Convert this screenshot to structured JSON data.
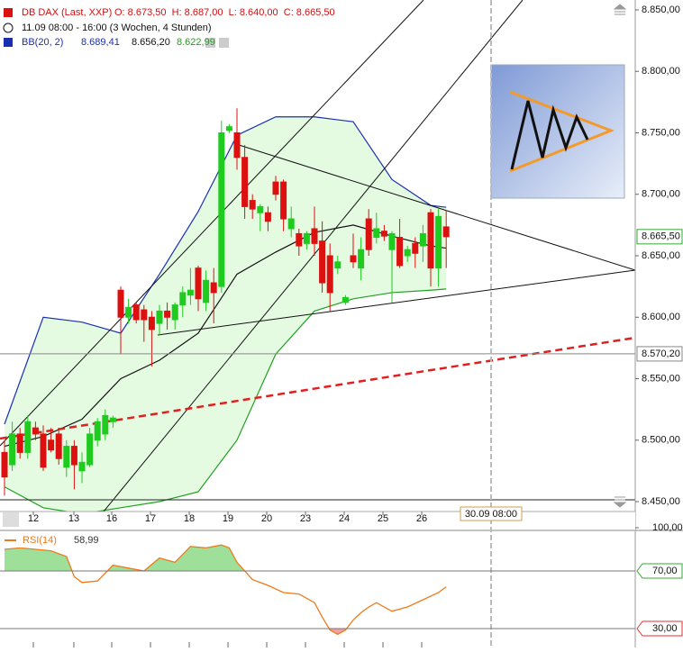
{
  "chart_data": [
    {
      "type": "candlestick",
      "title": "DB DAX (Last, XXP)",
      "ohlc_label": "O: 8.673,50  H: 8.687,00  L: 8.640,00  C: 8.665,50",
      "subtitle": "11.09 08:00 - 16:00 (3 Wochen, 4 Stunden)",
      "up_color": "#1ecb1e",
      "down_color": "#dd1010",
      "x": [
        0,
        1,
        2,
        3,
        4,
        5,
        6,
        7,
        8,
        9,
        10,
        11,
        12,
        13,
        14,
        15,
        16,
        17,
        18,
        19,
        20,
        21,
        22,
        23,
        24,
        25,
        26,
        27,
        28,
        29,
        30,
        31,
        32,
        33,
        34,
        35,
        36,
        37,
        38,
        39,
        40,
        41,
        42,
        43,
        44,
        45,
        46,
        47,
        48,
        49,
        50,
        51,
        52,
        53,
        54,
        55,
        56,
        57
      ],
      "open": [
        8490,
        8480,
        8505,
        8490,
        8510,
        8505,
        8500,
        8505,
        8478,
        8495,
        8475,
        8480,
        8500,
        8505,
        8515,
        8622,
        8600,
        8610,
        8606,
        8600,
        8595,
        8605,
        8598,
        8610,
        8618,
        8640,
        8612,
        8628,
        8625,
        8752,
        8750,
        8730,
        8695,
        8685,
        8685,
        8710,
        8710,
        8672,
        8668,
        8660,
        8672,
        8662,
        8650,
        8640,
        8612,
        8650,
        8640,
        8680,
        8665,
        8670,
        8655,
        8665,
        8650,
        8660,
        8658,
        8685,
        8640,
        8673.5
      ],
      "high": [
        8500,
        8515,
        8510,
        8520,
        8515,
        8512,
        8510,
        8510,
        8500,
        8500,
        8490,
        8510,
        8518,
        8525,
        8520,
        8625,
        8615,
        8612,
        8610,
        8605,
        8610,
        8612,
        8612,
        8625,
        8640,
        8642,
        8638,
        8640,
        8760,
        8757,
        8770,
        8740,
        8700,
        8692,
        8690,
        8715,
        8712,
        8690,
        8672,
        8670,
        8690,
        8678,
        8660,
        8650,
        8618,
        8668,
        8665,
        8688,
        8685,
        8675,
        8670,
        8680,
        8658,
        8665,
        8675,
        8688,
        8688,
        8687
      ],
      "low": [
        8455,
        8475,
        8485,
        8485,
        8500,
        8475,
        8490,
        8480,
        8470,
        8460,
        8465,
        8478,
        8495,
        8500,
        8510,
        8570,
        8595,
        8595,
        8580,
        8560,
        8585,
        8590,
        8590,
        8600,
        8610,
        8605,
        8605,
        8595,
        8620,
        8750,
        8720,
        8680,
        8680,
        8670,
        8670,
        8695,
        8670,
        8665,
        8650,
        8655,
        8650,
        8620,
        8605,
        8635,
        8610,
        8640,
        8630,
        8650,
        8660,
        8662,
        8612,
        8640,
        8645,
        8640,
        8645,
        8625,
        8625,
        8640
      ],
      "close": [
        8470,
        8505,
        8490,
        8515,
        8505,
        8478,
        8492,
        8485,
        8495,
        8480,
        8482,
        8505,
        8515,
        8520,
        8518,
        8600,
        8608,
        8598,
        8598,
        8590,
        8605,
        8600,
        8610,
        8620,
        8622,
        8615,
        8630,
        8620,
        8750,
        8755,
        8730,
        8690,
        8688,
        8690,
        8678,
        8700,
        8680,
        8680,
        8658,
        8668,
        8660,
        8628,
        8620,
        8645,
        8616,
        8645,
        8655,
        8655,
        8672,
        8666,
        8668,
        8642,
        8655,
        8652,
        8668,
        8640,
        8682,
        8665.5
      ],
      "bands": {
        "name": "BB(20, 2)",
        "fill": "#e4fbe2",
        "x": [
          0,
          5,
          10,
          15,
          20,
          25,
          30,
          35,
          40,
          45,
          50,
          55,
          57
        ],
        "series": [
          {
            "color": "#1a2fb0",
            "values": [
              8513,
              8600,
              8596,
              8587,
              8635,
              8686,
              8748,
              8763,
              8763,
              8759,
              8712,
              8691,
              8689.41
            ],
            "value_label": "8.689,41"
          },
          {
            "color": "#111111",
            "values": [
              8495,
              8503,
              8517,
              8550,
              8565,
              8587,
              8635,
              8653,
              8669,
              8675,
              8666,
              8658,
              8656.2
            ],
            "value_label": "8.656,20"
          },
          {
            "color": "#22a022",
            "values": [
              8462,
              8445,
              8440,
              8445,
              8450,
              8458,
              8500,
              8570,
              8605,
              8615,
              8620,
              8622,
              8622.99
            ],
            "value_label": "8.622,99"
          }
        ]
      },
      "xlim": [
        -0.5814,
        81.3953
      ],
      "xticks": [
        {
          "value": 3.72,
          "label": "12"
        },
        {
          "value": 8.95,
          "label": "13"
        },
        {
          "value": 13.84,
          "label": "16"
        },
        {
          "value": 18.84,
          "label": "17"
        },
        {
          "value": 23.84,
          "label": "18"
        },
        {
          "value": 28.84,
          "label": "19"
        },
        {
          "value": 33.84,
          "label": "20"
        },
        {
          "value": 38.84,
          "label": "23"
        },
        {
          "value": 43.84,
          "label": "24"
        },
        {
          "value": 48.84,
          "label": "25"
        },
        {
          "value": 53.84,
          "label": "26"
        }
      ],
      "ylim": [
        8441.94,
        8858.06
      ],
      "yticks": [
        {
          "value": 8450,
          "label": "8.450,00"
        },
        {
          "value": 8500,
          "label": "8.500,00"
        },
        {
          "value": 8550,
          "label": "8.550,00"
        },
        {
          "value": 8600,
          "label": "8.600,00"
        },
        {
          "value": 8650,
          "label": "8.650,00"
        },
        {
          "value": 8700,
          "label": "8.700,00"
        },
        {
          "value": 8750,
          "label": "8.750,00"
        },
        {
          "value": 8800,
          "label": "8.800,00"
        },
        {
          "value": 8850,
          "label": "8.850,00"
        }
      ],
      "price_line": {
        "value": 8570.2,
        "label": "8.570,20"
      },
      "last_price": {
        "value": 8665.5,
        "label": "8.665,50"
      },
      "cursor": {
        "value": 62.79,
        "label": "30.09 08:00"
      }
    },
    {
      "type": "line",
      "title": "RSI(14)",
      "value_label": "58,99",
      "color": "#f07a1a",
      "x": [
        0,
        2,
        4,
        6,
        8,
        9,
        10,
        12,
        14,
        16,
        18,
        20,
        22,
        24,
        26,
        28,
        29,
        30,
        32,
        34,
        36,
        38,
        40,
        41,
        42,
        43,
        44,
        45,
        46,
        47,
        48,
        50,
        52,
        54,
        56,
        57
      ],
      "values": [
        85,
        86,
        85,
        84,
        80,
        66,
        62,
        63,
        74,
        72,
        70,
        79,
        76,
        87,
        86,
        88,
        86,
        76,
        64,
        60,
        55,
        54,
        48,
        38,
        29,
        26,
        29,
        36,
        41,
        45,
        48,
        42,
        45,
        50,
        55,
        58.99
      ],
      "ylim": [
        16.875,
        97.5
      ],
      "yticks": [
        {
          "value": 30,
          "label": "30,00"
        },
        {
          "value": 70,
          "label": "70,00"
        },
        {
          "value": 100,
          "label": "100,00"
        }
      ],
      "thresholds": [
        30,
        70
      ]
    }
  ]
}
